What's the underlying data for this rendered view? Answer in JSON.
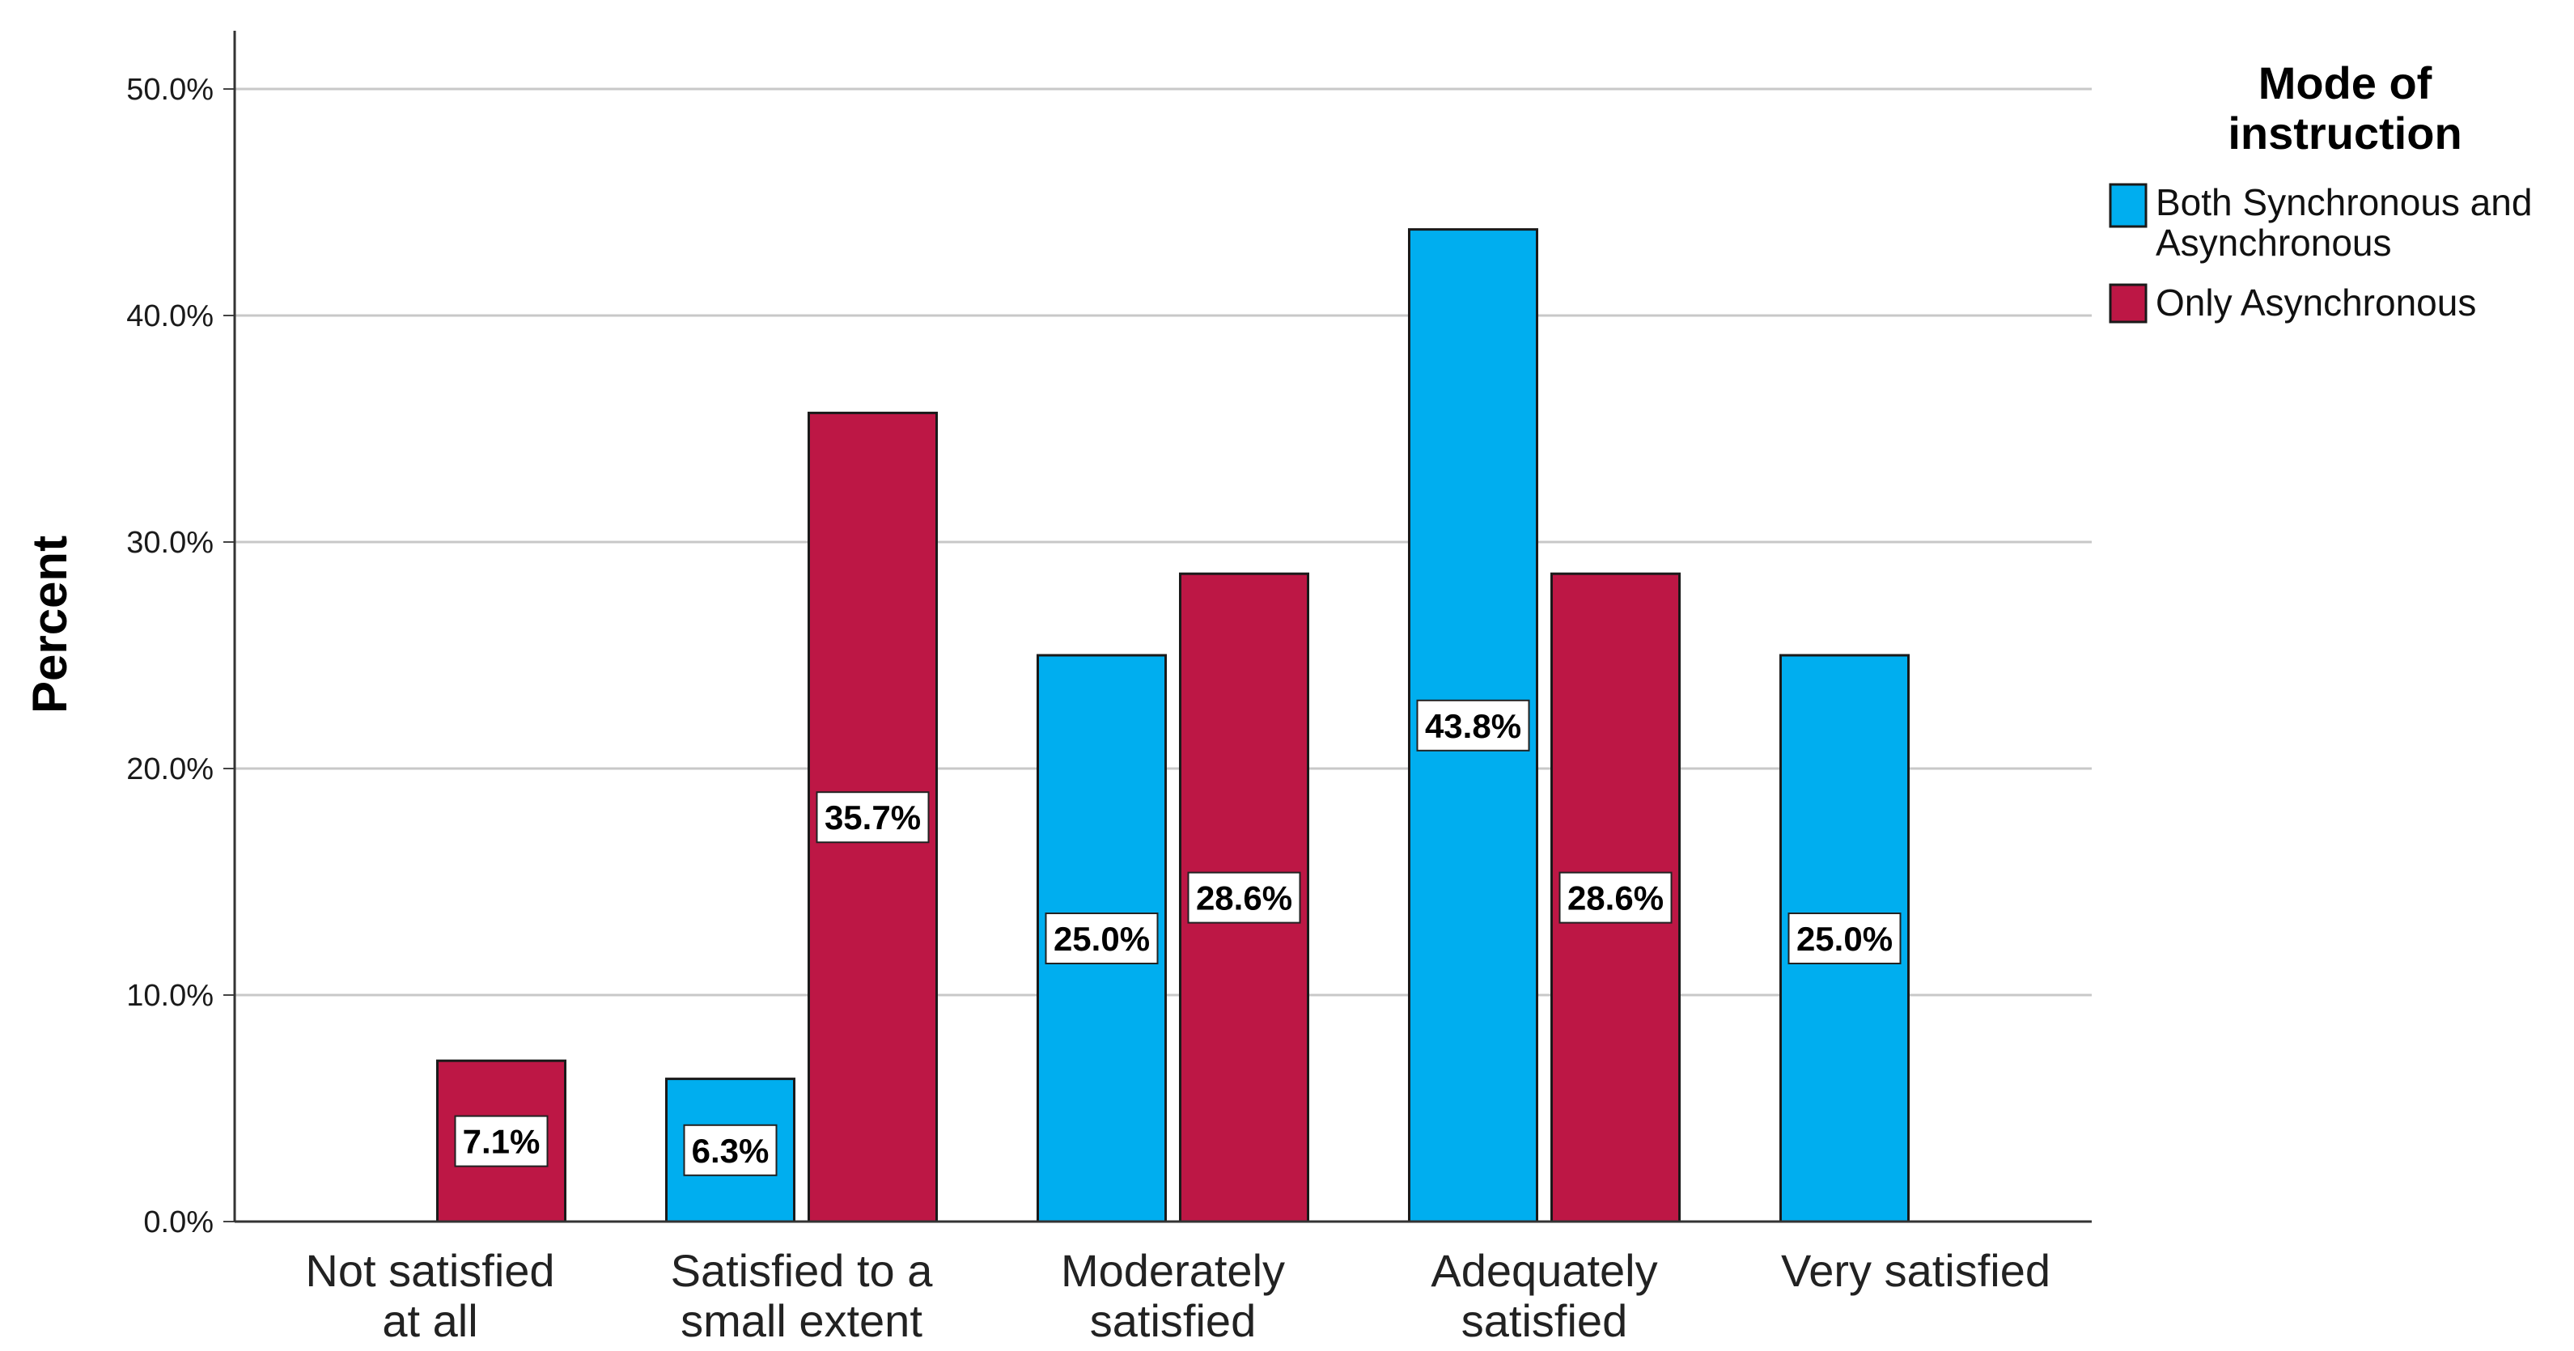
{
  "chart_data": {
    "type": "bar",
    "title": "",
    "xlabel": "",
    "ylabel": "Percent",
    "ylim": [
      0,
      50
    ],
    "yticks": [
      "0.0%",
      "10.0%",
      "20.0%",
      "30.0%",
      "40.0%",
      "50.0%"
    ],
    "grid": true,
    "legend_position": "top-right",
    "legend_title": "Mode of instruction",
    "categories": [
      [
        "Not satisfied",
        "at all"
      ],
      [
        "Satisfied to a",
        "small extent"
      ],
      [
        "Moderately",
        "satisfied"
      ],
      [
        "Adequately",
        "satisfied"
      ],
      [
        "Very satisfied"
      ]
    ],
    "series": [
      {
        "name": "Both Synchronous and Asynchronous",
        "legend_lines": [
          "Both Synchronous and",
          "Asynchronous"
        ],
        "color": "#00aeef",
        "values": [
          0,
          6.3,
          25.0,
          43.8,
          25.0
        ],
        "labels": [
          "",
          "6.3%",
          "25.0%",
          "43.8%",
          "25.0%"
        ]
      },
      {
        "name": "Only Asynchronous",
        "legend_lines": [
          "Only Asynchronous"
        ],
        "color": "#bd1745",
        "values": [
          7.1,
          35.7,
          28.6,
          28.6,
          0
        ],
        "labels": [
          "7.1%",
          "35.7%",
          "28.6%",
          "28.6%",
          ""
        ]
      }
    ]
  }
}
